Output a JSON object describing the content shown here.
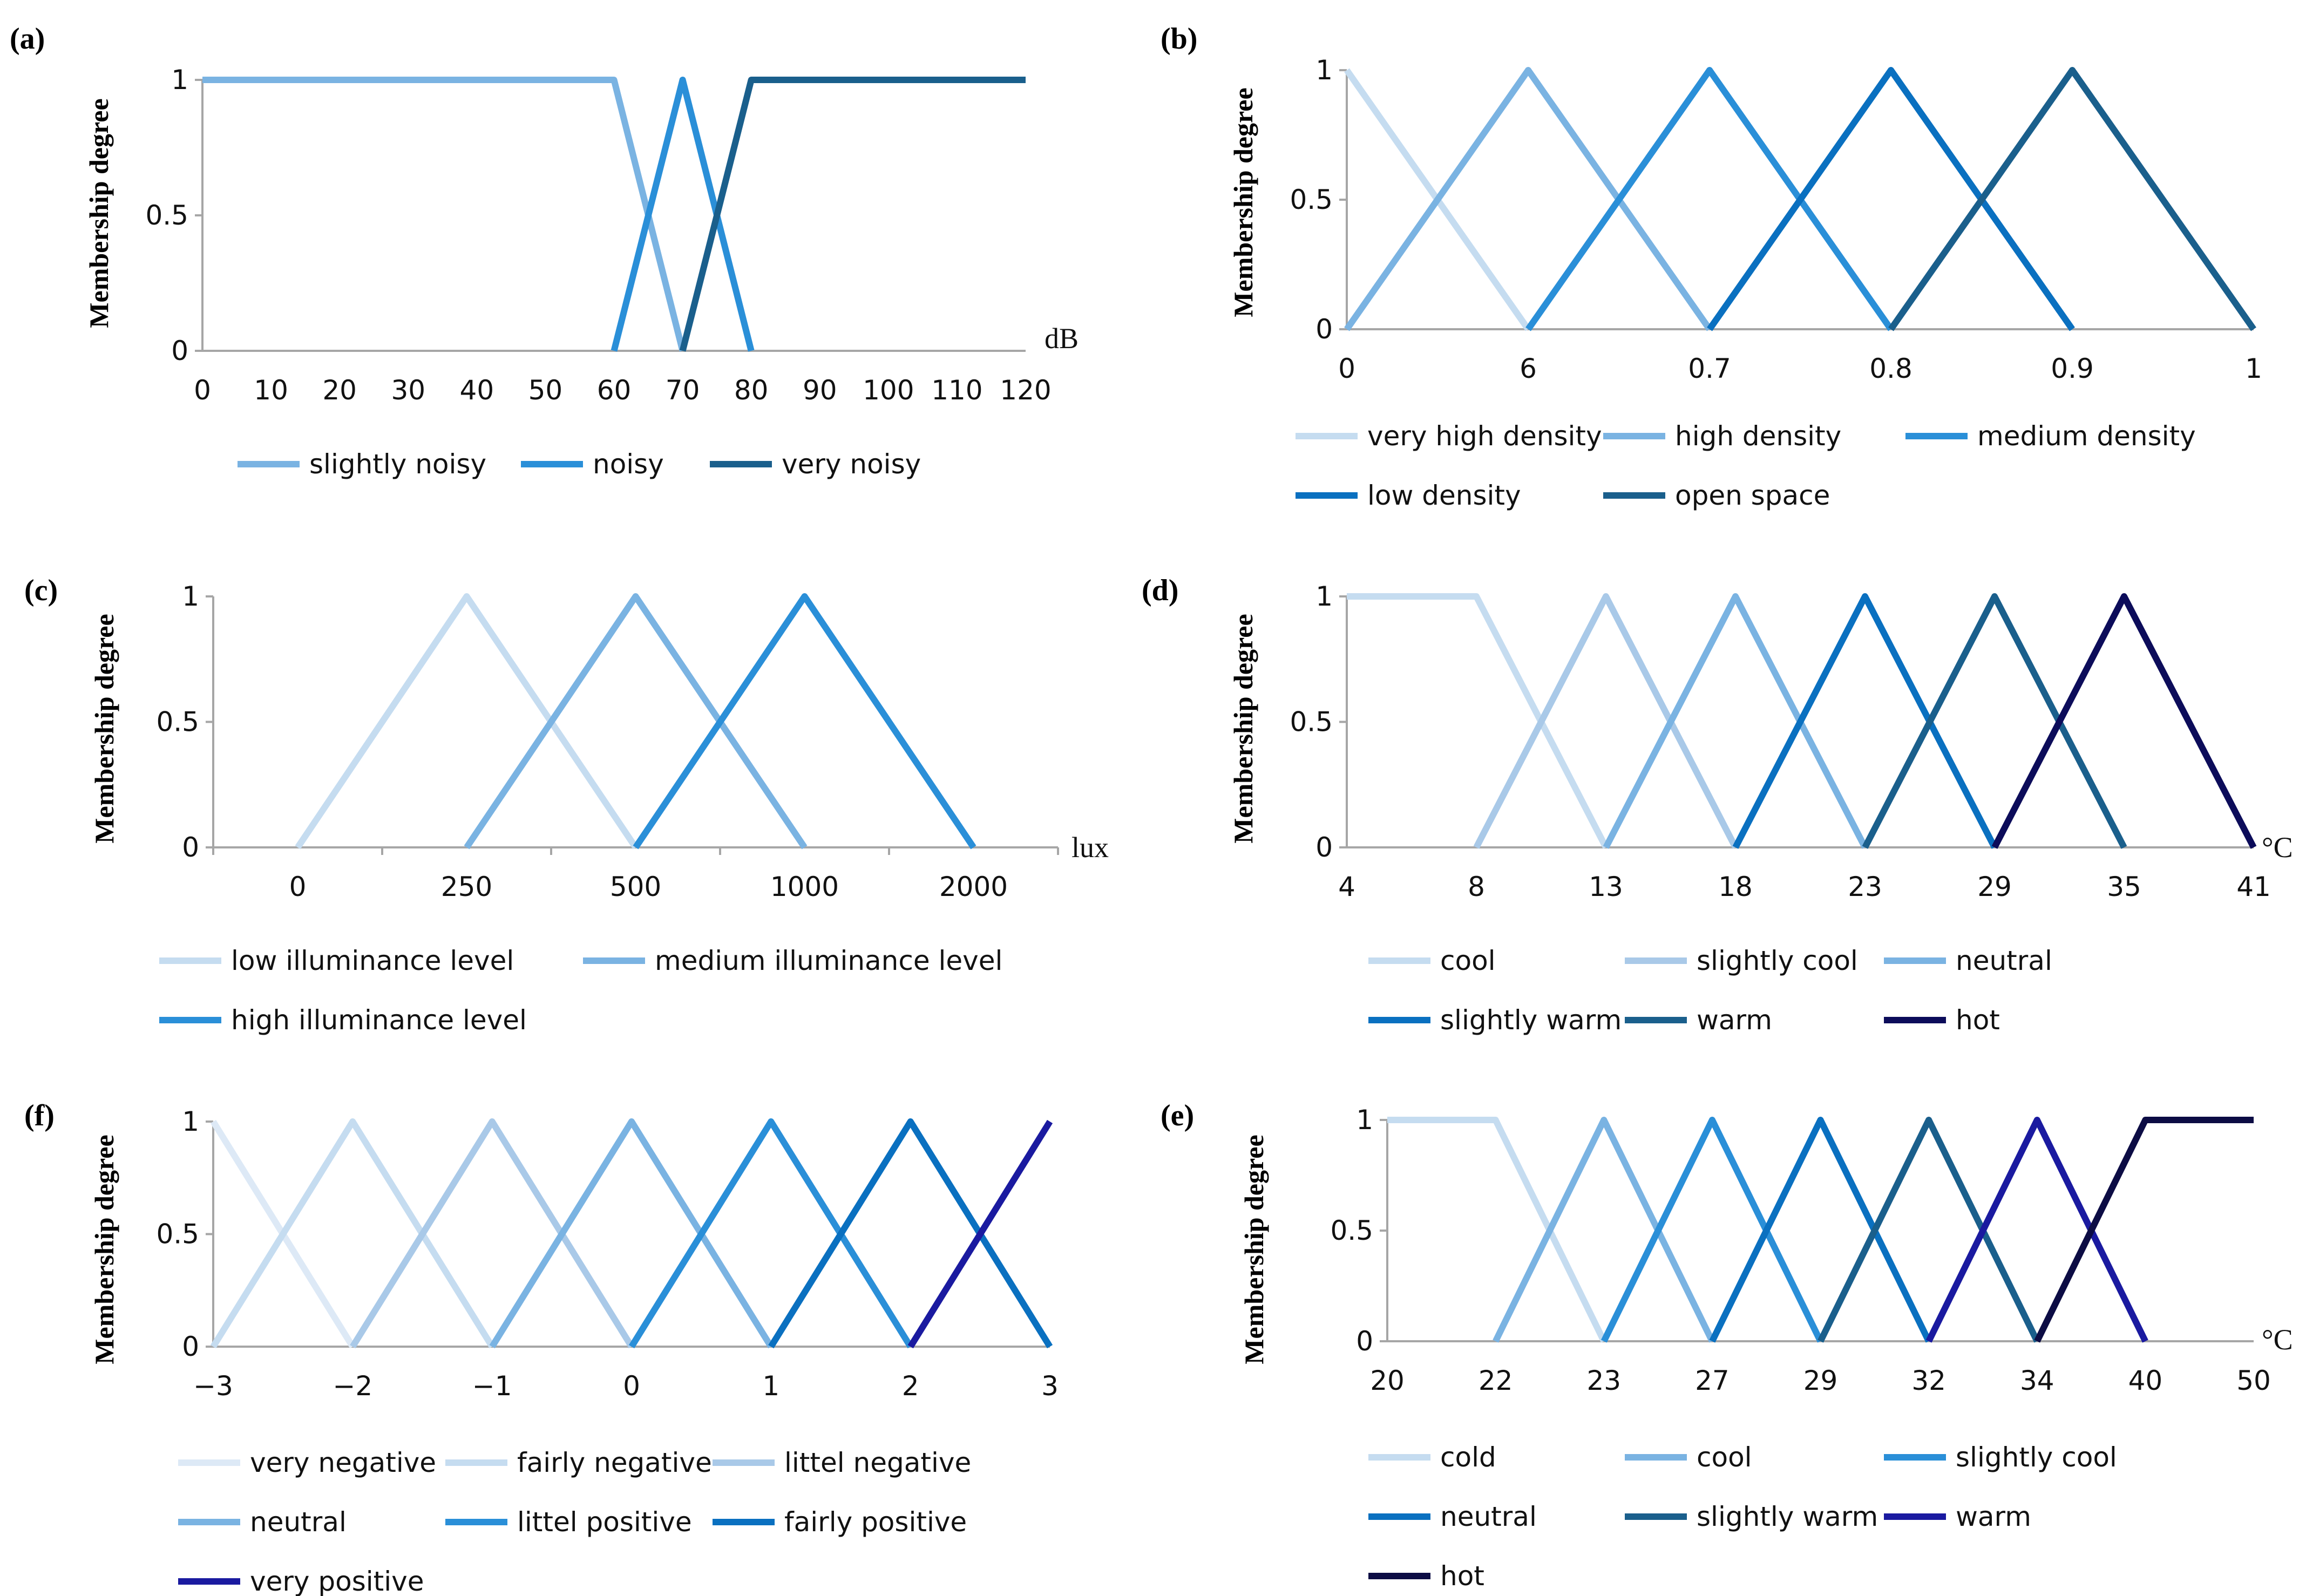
{
  "chart_data": [
    {
      "panel_label": "(a)",
      "type": "line",
      "ylabel": "Membership degree",
      "xunit": "dB",
      "yticks": [
        "0",
        "0.5",
        "1"
      ],
      "x_categories": [
        "0",
        "10",
        "20",
        "30",
        "40",
        "50",
        "60",
        "70",
        "80",
        "90",
        "100",
        "110",
        "120"
      ],
      "x_numeric": true,
      "series": [
        {
          "name": "slightly noisy",
          "color": "#7ab3e2",
          "x": [
            0,
            60,
            70
          ],
          "y": [
            1,
            1,
            0
          ]
        },
        {
          "name": "noisy",
          "color": "#2a8fd8",
          "x": [
            60,
            70,
            80
          ],
          "y": [
            0,
            1,
            0
          ]
        },
        {
          "name": "very noisy",
          "color": "#1a5f8c",
          "x": [
            70,
            80,
            120
          ],
          "y": [
            0,
            1,
            1
          ]
        }
      ]
    },
    {
      "panel_label": "(b)",
      "type": "line",
      "ylabel": "Membership degree",
      "xunit": "",
      "yticks": [
        "0",
        "0.5",
        "1"
      ],
      "x_categories": [
        "0",
        "6",
        "0.7",
        "0.8",
        "0.9",
        "1"
      ],
      "series": [
        {
          "name": "very high density",
          "color": "#c5dcf0",
          "x": [
            0,
            1
          ],
          "y": [
            1,
            0
          ]
        },
        {
          "name": "high density",
          "color": "#7ab3e2",
          "x": [
            0,
            1,
            2
          ],
          "y": [
            0,
            1,
            0
          ]
        },
        {
          "name": "medium density",
          "color": "#2a8fd8",
          "x": [
            1,
            2,
            3
          ],
          "y": [
            0,
            1,
            0
          ]
        },
        {
          "name": "low density",
          "color": "#0a70c0",
          "x": [
            2,
            3,
            4
          ],
          "y": [
            0,
            1,
            0
          ]
        },
        {
          "name": "open space",
          "color": "#1a5f8c",
          "x": [
            3,
            4,
            5
          ],
          "y": [
            0,
            1,
            0
          ]
        }
      ]
    },
    {
      "panel_label": "(c)",
      "type": "line",
      "ylabel": "Membership degree",
      "xunit": "lux",
      "yticks": [
        "0",
        "0.5",
        "1"
      ],
      "x_categories": [
        "0",
        "250",
        "500",
        "1000",
        "2000"
      ],
      "series": [
        {
          "name": "low illuminance level",
          "color": "#c5dcf0",
          "x": [
            0,
            1,
            2
          ],
          "y": [
            0,
            1,
            0
          ]
        },
        {
          "name": "medium illuminance level",
          "color": "#7ab3e2",
          "x": [
            1,
            2,
            3
          ],
          "y": [
            0,
            1,
            0
          ]
        },
        {
          "name": "high illuminance level",
          "color": "#2a8fd8",
          "x": [
            2,
            3,
            4
          ],
          "y": [
            0,
            1,
            0
          ]
        }
      ]
    },
    {
      "panel_label": "(d)",
      "type": "line",
      "ylabel": "Membership degree",
      "xunit": "°C",
      "yticks": [
        "0",
        "0.5",
        "1"
      ],
      "x_categories": [
        "4",
        "8",
        "13",
        "18",
        "23",
        "29",
        "35",
        "41"
      ],
      "series": [
        {
          "name": "cool",
          "color": "#c5dcf0",
          "x": [
            0,
            1,
            2
          ],
          "y": [
            1,
            1,
            0
          ]
        },
        {
          "name": "slightly cool",
          "color": "#a9c9e8",
          "x": [
            1,
            2,
            3
          ],
          "y": [
            0,
            1,
            0
          ]
        },
        {
          "name": "neutral",
          "color": "#7ab3e2",
          "x": [
            2,
            3,
            4
          ],
          "y": [
            0,
            1,
            0
          ]
        },
        {
          "name": "slightly warm",
          "color": "#0a70c0",
          "x": [
            3,
            4,
            5
          ],
          "y": [
            0,
            1,
            0
          ]
        },
        {
          "name": "warm",
          "color": "#1a5f8c",
          "x": [
            4,
            5,
            6
          ],
          "y": [
            0,
            1,
            0
          ]
        },
        {
          "name": "hot",
          "color": "#0c0c5a",
          "x": [
            5,
            6,
            7
          ],
          "y": [
            0,
            1,
            0
          ]
        }
      ]
    },
    {
      "panel_label": "(f)",
      "type": "line",
      "ylabel": "Membership degree",
      "xunit": "",
      "yticks": [
        "0",
        "0.5",
        "1"
      ],
      "x_categories": [
        "−3",
        "−2",
        "−1",
        "0",
        "1",
        "2",
        "3"
      ],
      "series": [
        {
          "name": "very negative",
          "color": "#dde9f6",
          "x": [
            0,
            1
          ],
          "y": [
            1,
            0
          ]
        },
        {
          "name": "fairly negative",
          "color": "#c5dcf0",
          "x": [
            0,
            1,
            2
          ],
          "y": [
            0,
            1,
            0
          ]
        },
        {
          "name": "littel negative",
          "color": "#a9c9e8",
          "x": [
            1,
            2,
            3
          ],
          "y": [
            0,
            1,
            0
          ]
        },
        {
          "name": "neutral",
          "color": "#7ab3e2",
          "x": [
            2,
            3,
            4
          ],
          "y": [
            0,
            1,
            0
          ]
        },
        {
          "name": "littel positive",
          "color": "#2a8fd8",
          "x": [
            3,
            4,
            5
          ],
          "y": [
            0,
            1,
            0
          ]
        },
        {
          "name": "fairly positive",
          "color": "#0a70c0",
          "x": [
            4,
            5,
            6
          ],
          "y": [
            0,
            1,
            0
          ]
        },
        {
          "name": "very positive",
          "color": "#1a1aa0",
          "x": [
            5,
            6
          ],
          "y": [
            0,
            1
          ]
        }
      ]
    },
    {
      "panel_label": "(e)",
      "type": "line",
      "ylabel": "Membership degree",
      "xunit": "°C",
      "yticks": [
        "0",
        "0.5",
        "1"
      ],
      "x_categories": [
        "20",
        "22",
        "23",
        "27",
        "29",
        "32",
        "34",
        "40",
        "50"
      ],
      "series": [
        {
          "name": "cold",
          "color": "#c5dcf0",
          "x": [
            0,
            1,
            2
          ],
          "y": [
            1,
            1,
            0
          ]
        },
        {
          "name": "cool",
          "color": "#7ab3e2",
          "x": [
            1,
            2,
            3
          ],
          "y": [
            0,
            1,
            0
          ]
        },
        {
          "name": "slightly cool",
          "color": "#2a8fd8",
          "x": [
            2,
            3,
            4
          ],
          "y": [
            0,
            1,
            0
          ]
        },
        {
          "name": "neutral",
          "color": "#0a70c0",
          "x": [
            3,
            4,
            5
          ],
          "y": [
            0,
            1,
            0
          ]
        },
        {
          "name": "slightly warm",
          "color": "#1a5f8c",
          "x": [
            4,
            5,
            6
          ],
          "y": [
            0,
            1,
            0
          ]
        },
        {
          "name": "warm",
          "color": "#1a1aa0",
          "x": [
            5,
            6,
            7
          ],
          "y": [
            0,
            1,
            0
          ]
        },
        {
          "name": "hot",
          "color": "#0c0c44",
          "x": [
            6,
            7,
            8
          ],
          "y": [
            0,
            1,
            1
          ]
        }
      ]
    }
  ]
}
